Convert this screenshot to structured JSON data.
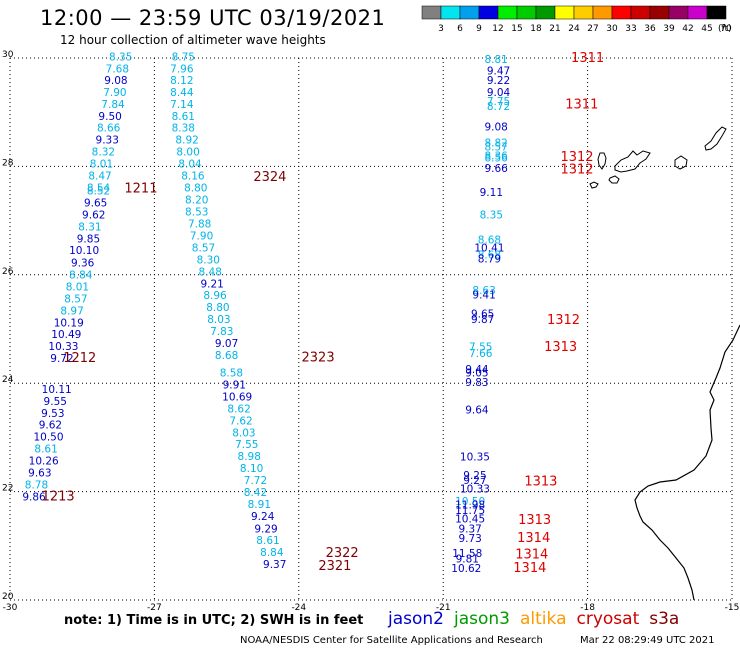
{
  "header": {
    "title": "12:00 — 23:59 UTC 03/19/2021",
    "subtitle": "12 hour collection of altimeter wave heights"
  },
  "legend": {
    "unit": "(ft)",
    "bins": [
      {
        "label": "3",
        "color": "#808080"
      },
      {
        "label": "6",
        "color": "#00e5ee"
      },
      {
        "label": "9",
        "color": "#00a0ee"
      },
      {
        "label": "12",
        "color": "#0000e0"
      },
      {
        "label": "15",
        "color": "#00ee00"
      },
      {
        "label": "18",
        "color": "#00cc00"
      },
      {
        "label": "21",
        "color": "#009900"
      },
      {
        "label": "24",
        "color": "#ffff00"
      },
      {
        "label": "27",
        "color": "#ffcc00"
      },
      {
        "label": "30",
        "color": "#ff9900"
      },
      {
        "label": "33",
        "color": "#ff0000"
      },
      {
        "label": "36",
        "color": "#cc0000"
      },
      {
        "label": "39",
        "color": "#990000"
      },
      {
        "label": "42",
        "color": "#990066"
      },
      {
        "label": "45",
        "color": "#cc00cc"
      },
      {
        "label": "70",
        "color": "#000000"
      }
    ]
  },
  "axes": {
    "lon_ticks": [
      "-30",
      "-27",
      "-24",
      "-21",
      "-18",
      "-15"
    ],
    "lat_ticks": [
      "30",
      "28",
      "26",
      "24",
      "22",
      "20"
    ],
    "lon_values": [
      -30,
      -27,
      -24,
      -21,
      -18,
      -15
    ],
    "lat_values": [
      30,
      28,
      26,
      24,
      22,
      20
    ]
  },
  "colors": {
    "light": "#00b4e8",
    "dark": "#0000c8",
    "tag_red": "#e00000",
    "tag_dark": "#800000"
  },
  "tracks": [
    {
      "id": "jason2-track-1",
      "points": [
        {
          "lon": -27.7,
          "lat": 29.95,
          "v": "8.35",
          "c": "light"
        },
        {
          "lon": -27.77,
          "lat": 29.73,
          "v": "7.68",
          "c": "light"
        },
        {
          "lon": -27.8,
          "lat": 29.52,
          "v": "9.08",
          "c": "dark"
        },
        {
          "lon": -27.82,
          "lat": 29.3,
          "v": "7.90",
          "c": "light"
        },
        {
          "lon": -27.86,
          "lat": 29.08,
          "v": "7.84",
          "c": "light"
        },
        {
          "lon": -27.92,
          "lat": 28.86,
          "v": "9.50",
          "c": "dark"
        },
        {
          "lon": -27.95,
          "lat": 28.64,
          "v": "8.66",
          "c": "light"
        },
        {
          "lon": -27.98,
          "lat": 28.42,
          "v": "9.33",
          "c": "dark"
        },
        {
          "lon": -28.06,
          "lat": 28.2,
          "v": "8.32",
          "c": "light"
        },
        {
          "lon": -28.1,
          "lat": 27.98,
          "v": "8.01",
          "c": "light"
        },
        {
          "lon": -28.13,
          "lat": 27.76,
          "v": "8.47",
          "c": "light"
        },
        {
          "lon": -28.16,
          "lat": 27.54,
          "v": "8.54",
          "c": "light"
        },
        {
          "lon": -28.16,
          "lat": 27.48,
          "v": "8.52",
          "c": "light"
        },
        {
          "lon": -28.22,
          "lat": 27.26,
          "v": "9.65",
          "c": "dark"
        },
        {
          "lon": -28.26,
          "lat": 27.04,
          "v": "9.62",
          "c": "dark"
        },
        {
          "lon": -28.34,
          "lat": 26.82,
          "v": "8.31",
          "c": "light"
        },
        {
          "lon": -28.37,
          "lat": 26.6,
          "v": "9.85",
          "c": "dark"
        },
        {
          "lon": -28.46,
          "lat": 26.38,
          "v": "10.10",
          "c": "dark"
        },
        {
          "lon": -28.49,
          "lat": 26.15,
          "v": "9.36",
          "c": "dark"
        },
        {
          "lon": -28.53,
          "lat": 25.93,
          "v": "8.84",
          "c": "light"
        },
        {
          "lon": -28.6,
          "lat": 25.71,
          "v": "8.01",
          "c": "light"
        },
        {
          "lon": -28.63,
          "lat": 25.49,
          "v": "8.57",
          "c": "light"
        },
        {
          "lon": -28.71,
          "lat": 25.27,
          "v": "8.97",
          "c": "light"
        },
        {
          "lon": -28.78,
          "lat": 25.05,
          "v": "10.19",
          "c": "dark"
        },
        {
          "lon": -28.83,
          "lat": 24.83,
          "v": "10.49",
          "c": "dark"
        },
        {
          "lon": -28.89,
          "lat": 24.61,
          "v": "10.33",
          "c": "dark"
        },
        {
          "lon": -28.92,
          "lat": 24.39,
          "v": "9.72",
          "c": "dark"
        },
        {
          "lon": -29.03,
          "lat": 23.82,
          "v": "10.11",
          "c": "dark"
        },
        {
          "lon": -29.06,
          "lat": 23.6,
          "v": "9.55",
          "c": "dark"
        },
        {
          "lon": -29.11,
          "lat": 23.38,
          "v": "9.53",
          "c": "dark"
        },
        {
          "lon": -29.16,
          "lat": 23.16,
          "v": "9.62",
          "c": "dark"
        },
        {
          "lon": -29.2,
          "lat": 22.94,
          "v": "10.50",
          "c": "dark"
        },
        {
          "lon": -29.25,
          "lat": 22.72,
          "v": "8.61",
          "c": "light"
        },
        {
          "lon": -29.3,
          "lat": 22.5,
          "v": "10.26",
          "c": "dark"
        },
        {
          "lon": -29.38,
          "lat": 22.28,
          "v": "9.63",
          "c": "dark"
        },
        {
          "lon": -29.45,
          "lat": 22.06,
          "v": "8.78",
          "c": "light"
        },
        {
          "lon": -29.5,
          "lat": 21.84,
          "v": "9.86",
          "c": "dark"
        }
      ]
    },
    {
      "id": "jason2-track-2",
      "points": [
        {
          "lon": -26.4,
          "lat": 29.95,
          "v": "8.75",
          "c": "light"
        },
        {
          "lon": -26.43,
          "lat": 29.73,
          "v": "7.96",
          "c": "light"
        },
        {
          "lon": -26.43,
          "lat": 29.52,
          "v": "8.12",
          "c": "light"
        },
        {
          "lon": -26.43,
          "lat": 29.3,
          "v": "8.44",
          "c": "light"
        },
        {
          "lon": -26.43,
          "lat": 29.08,
          "v": "7.14",
          "c": "light"
        },
        {
          "lon": -26.4,
          "lat": 28.86,
          "v": "8.61",
          "c": "light"
        },
        {
          "lon": -26.4,
          "lat": 28.64,
          "v": "8.38",
          "c": "light"
        },
        {
          "lon": -26.32,
          "lat": 28.42,
          "v": "8.92",
          "c": "light"
        },
        {
          "lon": -26.3,
          "lat": 28.2,
          "v": "8.00",
          "c": "light"
        },
        {
          "lon": -26.26,
          "lat": 27.98,
          "v": "8.04",
          "c": "light"
        },
        {
          "lon": -26.2,
          "lat": 27.76,
          "v": "8.16",
          "c": "light"
        },
        {
          "lon": -26.14,
          "lat": 27.54,
          "v": "8.80",
          "c": "light"
        },
        {
          "lon": -26.12,
          "lat": 27.32,
          "v": "8.20",
          "c": "light"
        },
        {
          "lon": -26.12,
          "lat": 27.09,
          "v": "8.53",
          "c": "light"
        },
        {
          "lon": -26.06,
          "lat": 26.87,
          "v": "7.88",
          "c": "light"
        },
        {
          "lon": -26.02,
          "lat": 26.65,
          "v": "7.90",
          "c": "light"
        },
        {
          "lon": -25.98,
          "lat": 26.43,
          "v": "8.57",
          "c": "light"
        },
        {
          "lon": -25.88,
          "lat": 26.21,
          "v": "8.30",
          "c": "light"
        },
        {
          "lon": -25.84,
          "lat": 25.99,
          "v": "8.48",
          "c": "light"
        },
        {
          "lon": -25.8,
          "lat": 25.77,
          "v": "9.21",
          "c": "dark"
        },
        {
          "lon": -25.74,
          "lat": 25.55,
          "v": "8.96",
          "c": "light"
        },
        {
          "lon": -25.68,
          "lat": 25.33,
          "v": "8.80",
          "c": "light"
        },
        {
          "lon": -25.66,
          "lat": 25.11,
          "v": "8.03",
          "c": "light"
        },
        {
          "lon": -25.6,
          "lat": 24.89,
          "v": "7.83",
          "c": "light"
        },
        {
          "lon": -25.5,
          "lat": 24.67,
          "v": "9.07",
          "c": "dark"
        },
        {
          "lon": -25.5,
          "lat": 24.45,
          "v": "8.68",
          "c": "light"
        },
        {
          "lon": -25.4,
          "lat": 24.12,
          "v": "8.58",
          "c": "light"
        },
        {
          "lon": -25.34,
          "lat": 23.9,
          "v": "9.91",
          "c": "dark"
        },
        {
          "lon": -25.28,
          "lat": 23.68,
          "v": "10.69",
          "c": "dark"
        },
        {
          "lon": -25.24,
          "lat": 23.46,
          "v": "8.62",
          "c": "light"
        },
        {
          "lon": -25.2,
          "lat": 23.24,
          "v": "7.62",
          "c": "light"
        },
        {
          "lon": -25.14,
          "lat": 23.02,
          "v": "8.03",
          "c": "light"
        },
        {
          "lon": -25.08,
          "lat": 22.8,
          "v": "7.55",
          "c": "light"
        },
        {
          "lon": -25.03,
          "lat": 22.58,
          "v": "8.98",
          "c": "light"
        },
        {
          "lon": -24.98,
          "lat": 22.36,
          "v": "8.10",
          "c": "light"
        },
        {
          "lon": -24.9,
          "lat": 22.14,
          "v": "7.72",
          "c": "light"
        },
        {
          "lon": -24.9,
          "lat": 21.92,
          "v": "8.42",
          "c": "light"
        },
        {
          "lon": -24.82,
          "lat": 21.7,
          "v": "8.91",
          "c": "light"
        },
        {
          "lon": -24.75,
          "lat": 21.48,
          "v": "9.24",
          "c": "dark"
        },
        {
          "lon": -24.68,
          "lat": 21.25,
          "v": "9.29",
          "c": "dark"
        },
        {
          "lon": -24.64,
          "lat": 21.03,
          "v": "8.61",
          "c": "light"
        },
        {
          "lon": -24.56,
          "lat": 20.81,
          "v": "8.84",
          "c": "light"
        },
        {
          "lon": -24.5,
          "lat": 20.59,
          "v": "9.37",
          "c": "dark"
        }
      ]
    },
    {
      "id": "jason2-track-3",
      "points": [
        {
          "lon": -19.9,
          "lat": 29.91,
          "v": "8.81",
          "c": "light"
        },
        {
          "lon": -19.85,
          "lat": 29.7,
          "v": "9.47",
          "c": "dark"
        },
        {
          "lon": -19.85,
          "lat": 29.52,
          "v": "9.22",
          "c": "dark"
        },
        {
          "lon": -19.85,
          "lat": 29.3,
          "v": "9.04",
          "c": "dark"
        },
        {
          "lon": -19.85,
          "lat": 29.13,
          "v": "7.75",
          "c": "light"
        },
        {
          "lon": -19.85,
          "lat": 29.04,
          "v": "8.72",
          "c": "light"
        },
        {
          "lon": -19.9,
          "lat": 28.66,
          "v": "9.08",
          "c": "dark"
        },
        {
          "lon": -19.9,
          "lat": 28.37,
          "v": "8.82",
          "c": "light"
        },
        {
          "lon": -19.9,
          "lat": 28.29,
          "v": "8.57",
          "c": "light"
        },
        {
          "lon": -19.9,
          "lat": 28.13,
          "v": "8.36",
          "c": "light"
        },
        {
          "lon": -19.9,
          "lat": 28.09,
          "v": "8.56",
          "c": "light"
        },
        {
          "lon": -19.9,
          "lat": 27.9,
          "v": "9.66",
          "c": "dark"
        },
        {
          "lon": -20.0,
          "lat": 27.45,
          "v": "9.11",
          "c": "dark"
        },
        {
          "lon": -20.0,
          "lat": 27.04,
          "v": "8.35",
          "c": "light"
        },
        {
          "lon": -20.04,
          "lat": 26.58,
          "v": "8.68",
          "c": "light"
        },
        {
          "lon": -20.04,
          "lat": 26.43,
          "v": "10.41",
          "c": "dark"
        },
        {
          "lon": -20.04,
          "lat": 26.3,
          "v": "8.68",
          "c": "light"
        },
        {
          "lon": -20.04,
          "lat": 26.23,
          "v": "8.79",
          "c": "dark"
        },
        {
          "lon": -20.15,
          "lat": 25.65,
          "v": "8.63",
          "c": "light"
        },
        {
          "lon": -20.15,
          "lat": 25.56,
          "v": "9.41",
          "c": "dark"
        },
        {
          "lon": -20.18,
          "lat": 25.21,
          "v": "9.65",
          "c": "dark"
        },
        {
          "lon": -20.18,
          "lat": 25.11,
          "v": "9.87",
          "c": "dark"
        },
        {
          "lon": -20.22,
          "lat": 24.6,
          "v": "7.55",
          "c": "light"
        },
        {
          "lon": -20.22,
          "lat": 24.48,
          "v": "7.66",
          "c": "light"
        },
        {
          "lon": -20.3,
          "lat": 24.19,
          "v": "9.44",
          "c": "dark"
        },
        {
          "lon": -20.3,
          "lat": 24.12,
          "v": "9.05",
          "c": "dark"
        },
        {
          "lon": -20.3,
          "lat": 23.95,
          "v": "9.83",
          "c": "dark"
        },
        {
          "lon": -20.3,
          "lat": 23.44,
          "v": "9.64",
          "c": "dark"
        },
        {
          "lon": -20.34,
          "lat": 22.57,
          "v": "10.35",
          "c": "dark"
        },
        {
          "lon": -20.34,
          "lat": 22.23,
          "v": "9.25",
          "c": "dark"
        },
        {
          "lon": -20.34,
          "lat": 22.14,
          "v": "9.27",
          "c": "dark"
        },
        {
          "lon": -20.34,
          "lat": 21.98,
          "v": "10.33",
          "c": "dark"
        },
        {
          "lon": -20.44,
          "lat": 21.75,
          "v": "10.50",
          "c": "light"
        },
        {
          "lon": -20.44,
          "lat": 21.69,
          "v": "11.98",
          "c": "dark"
        },
        {
          "lon": -20.44,
          "lat": 21.59,
          "v": "11.75",
          "c": "dark"
        },
        {
          "lon": -20.44,
          "lat": 21.43,
          "v": "10.45",
          "c": "dark"
        },
        {
          "lon": -20.44,
          "lat": 21.25,
          "v": "9.37",
          "c": "dark"
        },
        {
          "lon": -20.44,
          "lat": 21.07,
          "v": "9.73",
          "c": "dark"
        },
        {
          "lon": -20.5,
          "lat": 20.79,
          "v": "11.58",
          "c": "dark"
        },
        {
          "lon": -20.5,
          "lat": 20.69,
          "v": "9.81",
          "c": "dark"
        },
        {
          "lon": -20.52,
          "lat": 20.52,
          "v": "10.62",
          "c": "dark"
        }
      ]
    }
  ],
  "tags": [
    {
      "lon": -18.0,
      "lat": 29.93,
      "text": "1311",
      "c": "tag_red"
    },
    {
      "lon": -18.12,
      "lat": 29.07,
      "text": "1311",
      "c": "tag_red"
    },
    {
      "lon": -18.22,
      "lat": 28.1,
      "text": "1312",
      "c": "tag_red"
    },
    {
      "lon": -18.22,
      "lat": 27.87,
      "text": "1312",
      "c": "tag_red"
    },
    {
      "lon": -27.28,
      "lat": 27.52,
      "text": "1211",
      "c": "tag_dark"
    },
    {
      "lon": -24.6,
      "lat": 27.73,
      "text": "2324",
      "c": "tag_dark"
    },
    {
      "lon": -18.5,
      "lat": 25.09,
      "text": "1312",
      "c": "tag_red"
    },
    {
      "lon": -18.56,
      "lat": 24.59,
      "text": "1313",
      "c": "tag_red"
    },
    {
      "lon": -28.55,
      "lat": 24.39,
      "text": "1212",
      "c": "tag_dark"
    },
    {
      "lon": -23.6,
      "lat": 24.4,
      "text": "2323",
      "c": "tag_dark"
    },
    {
      "lon": -18.97,
      "lat": 22.11,
      "text": "1313",
      "c": "tag_red"
    },
    {
      "lon": -29.0,
      "lat": 21.84,
      "text": "1213",
      "c": "tag_dark"
    },
    {
      "lon": -19.1,
      "lat": 21.4,
      "text": "1313",
      "c": "tag_red"
    },
    {
      "lon": -19.12,
      "lat": 21.07,
      "text": "1314",
      "c": "tag_red"
    },
    {
      "lon": -19.16,
      "lat": 20.77,
      "text": "1314",
      "c": "tag_red"
    },
    {
      "lon": -19.2,
      "lat": 20.52,
      "text": "1314",
      "c": "tag_red"
    },
    {
      "lon": -23.1,
      "lat": 20.79,
      "text": "2322",
      "c": "tag_dark"
    },
    {
      "lon": -23.25,
      "lat": 20.55,
      "text": "2321",
      "c": "tag_dark"
    }
  ],
  "footer": {
    "note": "note:  1) Time is in UTC;  2) SWH is in feet",
    "sats": [
      {
        "name": "jason2",
        "color": "#0000cc"
      },
      {
        "name": "jason3",
        "color": "#009900"
      },
      {
        "name": "altika",
        "color": "#ff9900"
      },
      {
        "name": "cryosat",
        "color": "#cc0000"
      },
      {
        "name": "s3a",
        "color": "#800000"
      }
    ],
    "credit": "NOAA/NESDIS Center for Satellite Applications and Research",
    "timestamp": "Mar 22 08:29:49 UTC 2021"
  }
}
